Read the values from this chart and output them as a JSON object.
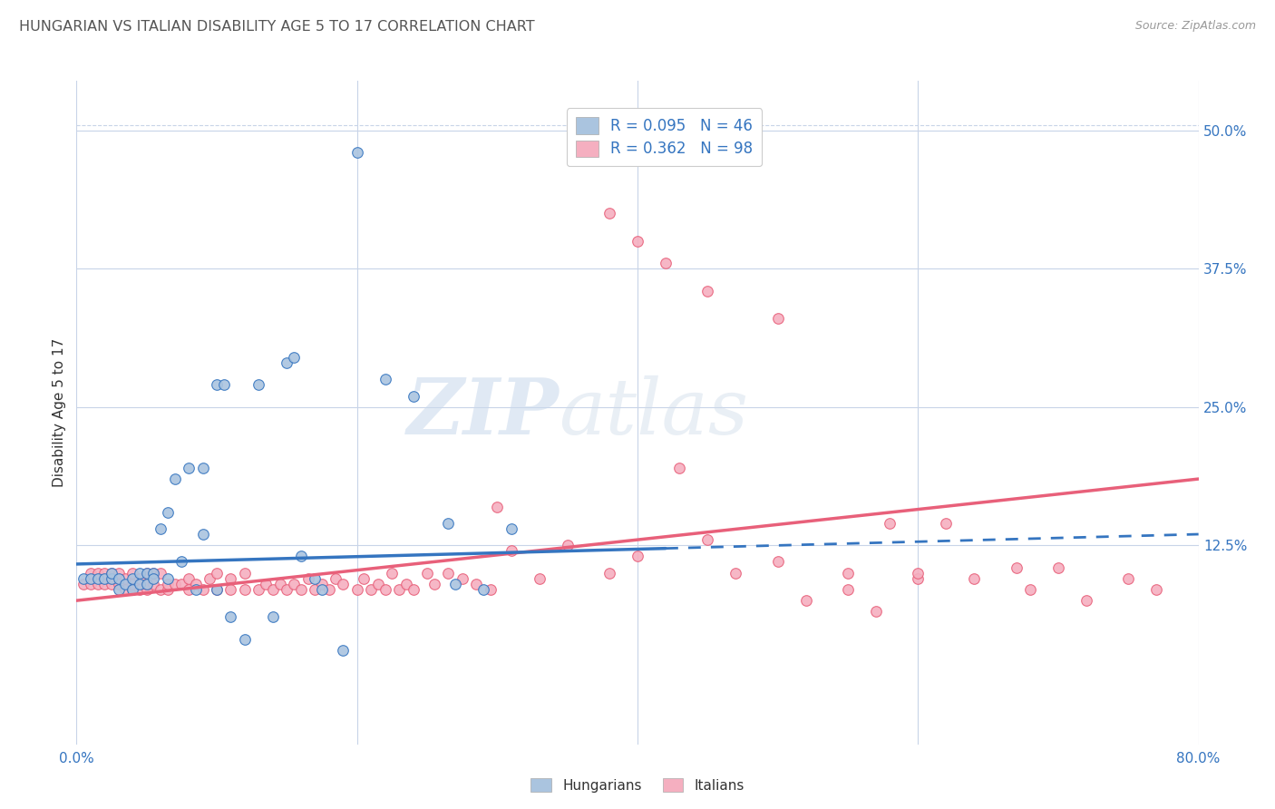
{
  "title": "HUNGARIAN VS ITALIAN DISABILITY AGE 5 TO 17 CORRELATION CHART",
  "source": "Source: ZipAtlas.com",
  "ylabel": "Disability Age 5 to 17",
  "ytick_labels": [
    "12.5%",
    "25.0%",
    "37.5%",
    "50.0%"
  ],
  "ytick_values": [
    0.125,
    0.25,
    0.375,
    0.5
  ],
  "xmin": 0.0,
  "xmax": 0.8,
  "ymin": -0.055,
  "ymax": 0.545,
  "hungarian_R": "0.095",
  "hungarian_N": "46",
  "italian_R": "0.362",
  "italian_N": "98",
  "hungarian_color": "#aac4df",
  "italian_color": "#f5afc0",
  "hungarian_line_color": "#3575c0",
  "italian_line_color": "#e8607a",
  "legend_label_1": "Hungarians",
  "legend_label_2": "Italians",
  "hung_line_start_y": 0.108,
  "hung_line_end_y": 0.135,
  "hung_line_solid_end_x": 0.42,
  "ital_line_start_y": 0.075,
  "ital_line_end_y": 0.185,
  "hungarian_scatter_x": [
    0.005,
    0.01,
    0.015,
    0.02,
    0.025,
    0.025,
    0.03,
    0.03,
    0.035,
    0.04,
    0.04,
    0.045,
    0.045,
    0.05,
    0.05,
    0.055,
    0.055,
    0.06,
    0.065,
    0.065,
    0.07,
    0.075,
    0.08,
    0.085,
    0.09,
    0.09,
    0.1,
    0.1,
    0.105,
    0.11,
    0.12,
    0.13,
    0.14,
    0.15,
    0.155,
    0.16,
    0.17,
    0.175,
    0.19,
    0.2,
    0.22,
    0.24,
    0.265,
    0.27,
    0.29,
    0.31
  ],
  "hungarian_scatter_y": [
    0.095,
    0.095,
    0.095,
    0.095,
    0.095,
    0.1,
    0.085,
    0.095,
    0.09,
    0.085,
    0.095,
    0.09,
    0.1,
    0.09,
    0.1,
    0.1,
    0.095,
    0.14,
    0.095,
    0.155,
    0.185,
    0.11,
    0.195,
    0.085,
    0.195,
    0.135,
    0.085,
    0.27,
    0.27,
    0.06,
    0.04,
    0.27,
    0.06,
    0.29,
    0.295,
    0.115,
    0.095,
    0.085,
    0.03,
    0.48,
    0.275,
    0.26,
    0.145,
    0.09,
    0.085,
    0.14
  ],
  "italian_scatter_x": [
    0.005,
    0.01,
    0.01,
    0.015,
    0.015,
    0.02,
    0.02,
    0.025,
    0.025,
    0.03,
    0.03,
    0.035,
    0.035,
    0.04,
    0.04,
    0.04,
    0.045,
    0.045,
    0.05,
    0.05,
    0.05,
    0.055,
    0.055,
    0.06,
    0.06,
    0.065,
    0.065,
    0.07,
    0.075,
    0.08,
    0.08,
    0.085,
    0.09,
    0.095,
    0.1,
    0.1,
    0.11,
    0.11,
    0.12,
    0.12,
    0.13,
    0.135,
    0.14,
    0.145,
    0.15,
    0.155,
    0.16,
    0.165,
    0.17,
    0.175,
    0.18,
    0.185,
    0.19,
    0.2,
    0.205,
    0.21,
    0.215,
    0.22,
    0.225,
    0.23,
    0.235,
    0.24,
    0.25,
    0.255,
    0.265,
    0.275,
    0.285,
    0.295,
    0.3,
    0.31,
    0.33,
    0.35,
    0.38,
    0.4,
    0.43,
    0.45,
    0.47,
    0.5,
    0.52,
    0.55,
    0.57,
    0.58,
    0.6,
    0.62,
    0.64,
    0.67,
    0.68,
    0.7,
    0.72,
    0.75,
    0.77,
    0.38,
    0.4,
    0.42,
    0.45,
    0.5,
    0.55,
    0.6
  ],
  "italian_scatter_y": [
    0.09,
    0.09,
    0.1,
    0.09,
    0.1,
    0.09,
    0.1,
    0.09,
    0.1,
    0.09,
    0.1,
    0.085,
    0.095,
    0.085,
    0.09,
    0.1,
    0.085,
    0.095,
    0.085,
    0.09,
    0.1,
    0.09,
    0.1,
    0.085,
    0.1,
    0.085,
    0.09,
    0.09,
    0.09,
    0.085,
    0.095,
    0.09,
    0.085,
    0.095,
    0.085,
    0.1,
    0.085,
    0.095,
    0.085,
    0.1,
    0.085,
    0.09,
    0.085,
    0.09,
    0.085,
    0.09,
    0.085,
    0.095,
    0.085,
    0.09,
    0.085,
    0.095,
    0.09,
    0.085,
    0.095,
    0.085,
    0.09,
    0.085,
    0.1,
    0.085,
    0.09,
    0.085,
    0.1,
    0.09,
    0.1,
    0.095,
    0.09,
    0.085,
    0.16,
    0.12,
    0.095,
    0.125,
    0.1,
    0.115,
    0.195,
    0.13,
    0.1,
    0.11,
    0.075,
    0.085,
    0.065,
    0.145,
    0.095,
    0.145,
    0.095,
    0.105,
    0.085,
    0.105,
    0.075,
    0.095,
    0.085,
    0.425,
    0.4,
    0.38,
    0.355,
    0.33,
    0.1,
    0.1
  ],
  "watermark_zip": "ZIP",
  "watermark_atlas": "atlas",
  "background_color": "#ffffff",
  "grid_color": "#c8d4e8",
  "title_color": "#555555",
  "axis_color_blue": "#3575c0",
  "text_color": "#333333"
}
